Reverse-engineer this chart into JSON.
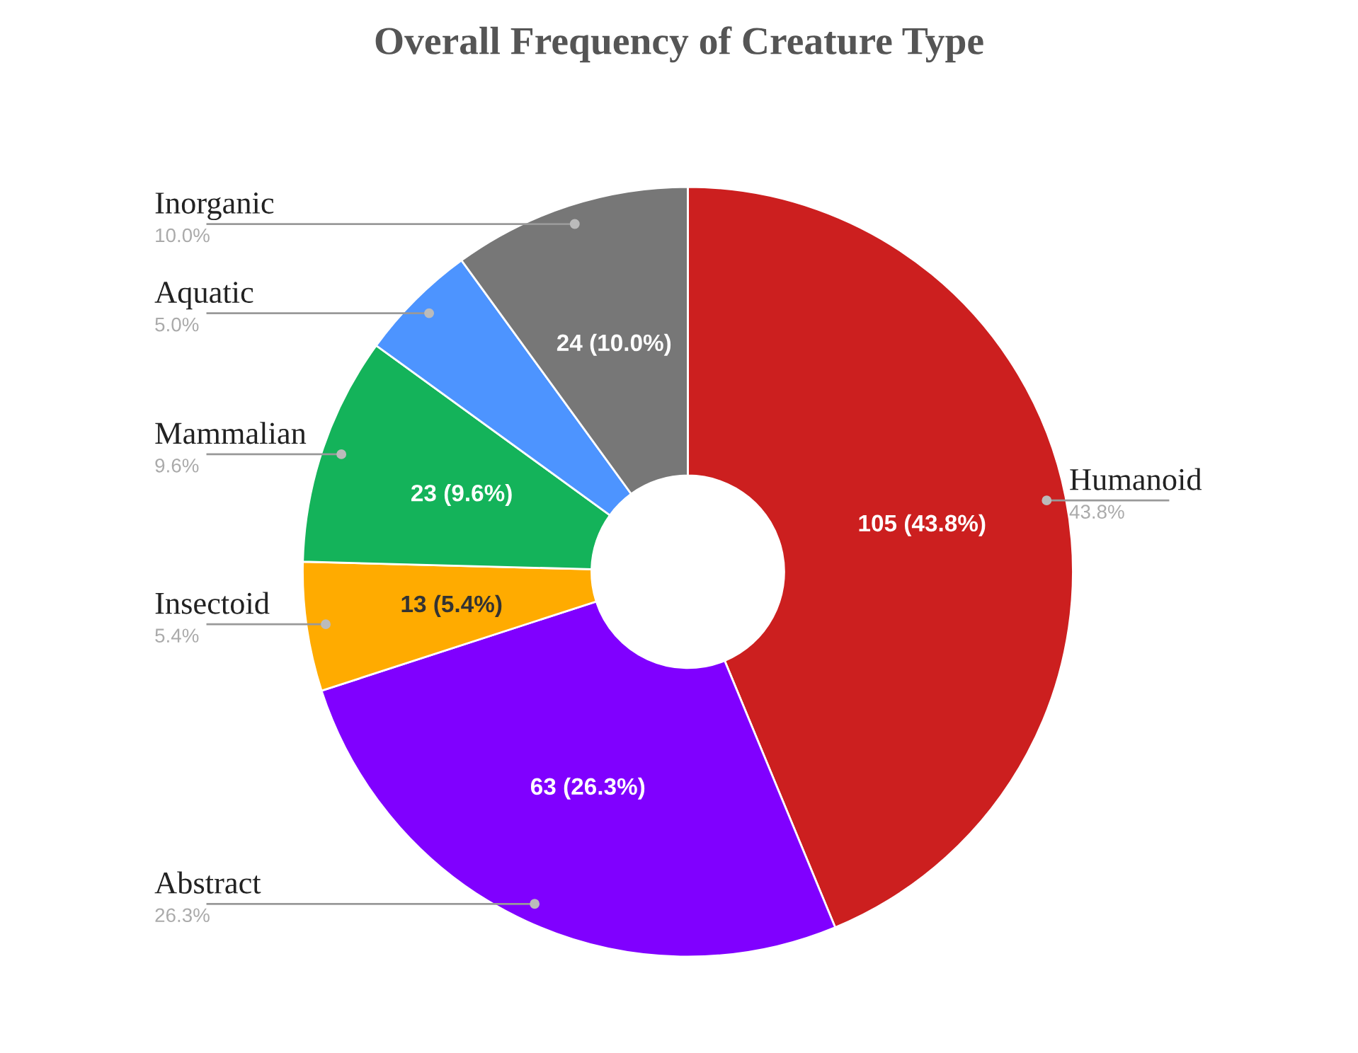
{
  "chart_data": {
    "type": "donut",
    "title": "Overall Frequency of Creature Type",
    "categories": [
      "Humanoid",
      "Abstract",
      "Insectoid",
      "Mammalian",
      "Aquatic",
      "Inorganic"
    ],
    "values": [
      105,
      63,
      13,
      23,
      12,
      24
    ],
    "colors": [
      "#cc1f1f",
      "#8000ff",
      "#ffab00",
      "#14b35a",
      "#4d94ff",
      "#777777"
    ],
    "value_labels": [
      "105 (43.8%)",
      "63 (26.3%)",
      "13 (5.4%)",
      "23 (9.6%)",
      null,
      "24 (10.0%)"
    ],
    "annotations": [
      "43.8%",
      "26.3%",
      "5.4%",
      "9.6%",
      "5.0%",
      "10.0%"
    ],
    "legend": false
  }
}
